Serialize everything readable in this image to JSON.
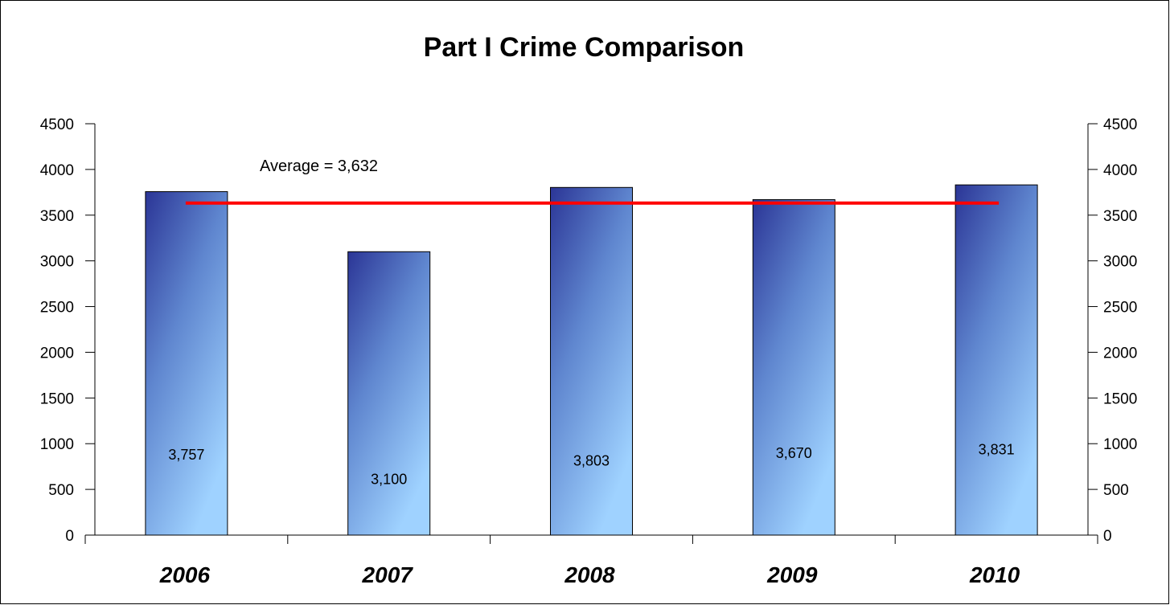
{
  "chart_data": {
    "type": "bar",
    "title": "Part I Crime Comparison",
    "xlabel": "",
    "ylabel": "",
    "categories": [
      "2006",
      "2007",
      "2008",
      "2009",
      "2010"
    ],
    "values": [
      3757,
      3100,
      3803,
      3670,
      3831
    ],
    "data_labels": [
      "3,757",
      "3,100",
      "3,803",
      "3,670",
      "3,831"
    ],
    "ylim": [
      0,
      4500
    ],
    "y_ticks": [
      0,
      500,
      1000,
      1500,
      2000,
      2500,
      3000,
      3500,
      4000,
      4500
    ],
    "y_tick_labels": [
      "0",
      "500",
      "1000",
      "1500",
      "2000",
      "2500",
      "3000",
      "3500",
      "4000",
      "4500"
    ],
    "secondary_y_axis": true,
    "grid": false,
    "legend": "none",
    "average": {
      "value": 3632,
      "label": "Average = 3,632",
      "color": "#ff0000"
    },
    "colors": {
      "bar_top": "#2b3596",
      "bar_bottom": "#9fd2ff",
      "bar_border": "#000000"
    }
  }
}
